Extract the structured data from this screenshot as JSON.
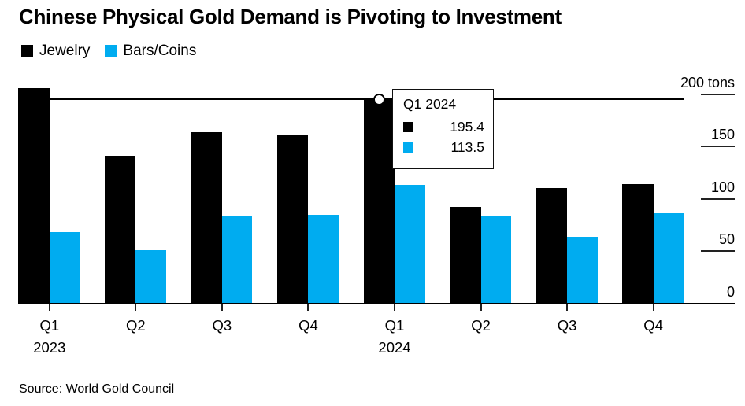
{
  "title": "Chinese Physical Gold Demand is Pivoting to Investment",
  "legend": [
    {
      "label": "Jewelry",
      "color": "#000000"
    },
    {
      "label": "Bars/Coins",
      "color": "#00ACF0"
    }
  ],
  "tooltip": {
    "title": "Q1 2024",
    "rows": [
      {
        "series": "Jewelry",
        "value": "195.4"
      },
      {
        "series": "Bars/Coins",
        "value": "113.5"
      }
    ]
  },
  "source": "Source: World Gold Council",
  "colors": {
    "jewelry": "#000000",
    "bars_coins": "#00ACF0",
    "axis": "#222222"
  },
  "chart_data": {
    "type": "bar",
    "title": "Chinese Physical Gold Demand is Pivoting to Investment",
    "unit": "tons",
    "categories": [
      "Q1 2023",
      "Q2 2023",
      "Q3 2023",
      "Q4 2023",
      "Q1 2024",
      "Q2 2024",
      "Q3 2024",
      "Q4 2024"
    ],
    "x_tick_labels": [
      "Q1",
      "Q2",
      "Q3",
      "Q4",
      "Q1",
      "Q2",
      "Q3",
      "Q4"
    ],
    "year_labels": [
      {
        "index": 0,
        "label": "2023"
      },
      {
        "index": 4,
        "label": "2024"
      }
    ],
    "series": [
      {
        "name": "Jewelry",
        "color": "#000000",
        "values": [
          206,
          141,
          164,
          161,
          195.4,
          92,
          110,
          114
        ]
      },
      {
        "name": "Bars/Coins",
        "color": "#00ACF0",
        "values": [
          68,
          51,
          84,
          85,
          113.5,
          83,
          64,
          86
        ]
      }
    ],
    "y_ticks": [
      {
        "value": 0,
        "label": "0"
      },
      {
        "value": 50,
        "label": "50"
      },
      {
        "value": 100,
        "label": "100"
      },
      {
        "value": 150,
        "label": "150"
      },
      {
        "value": 200,
        "label": "200 tons"
      }
    ],
    "ylim": [
      0,
      215
    ],
    "grid": false,
    "legend_position": "top-left",
    "highlight": {
      "category": "Q1 2024",
      "category_index": 4,
      "marker_series": "Jewelry",
      "values": {
        "Jewelry": 195.4,
        "Bars/Coins": 113.5
      }
    }
  }
}
